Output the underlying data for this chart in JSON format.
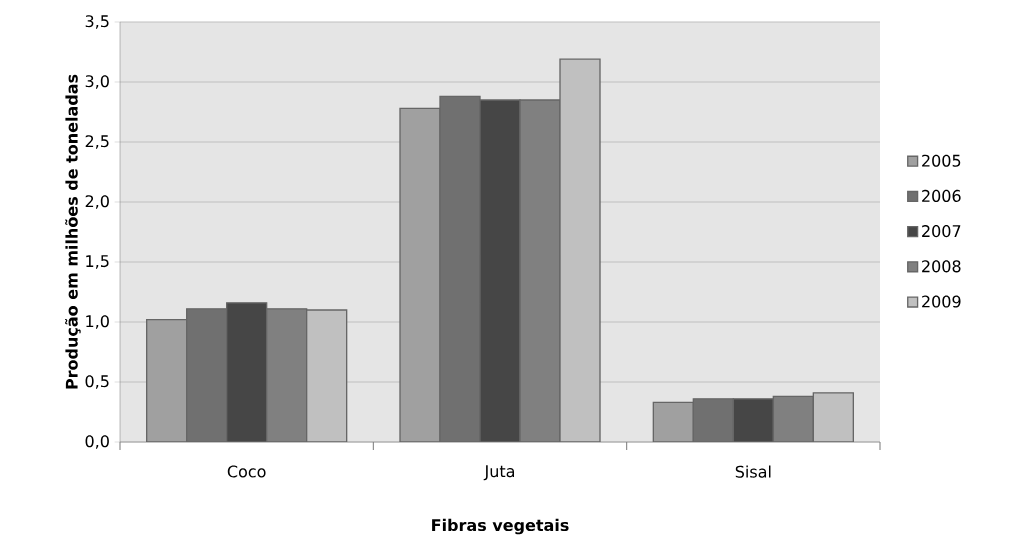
{
  "chart_data": {
    "type": "bar",
    "xlabel": "Fibras vegetais",
    "ylabel": "Produção em milhões de toneladas",
    "categories": [
      "Coco",
      "Juta",
      "Sisal"
    ],
    "series": [
      {
        "name": "2005",
        "color": "#a0a0a0",
        "values": [
          1.02,
          2.78,
          0.33
        ]
      },
      {
        "name": "2006",
        "color": "#707070",
        "values": [
          1.11,
          2.88,
          0.36
        ]
      },
      {
        "name": "2007",
        "color": "#464646",
        "values": [
          1.16,
          2.85,
          0.36
        ]
      },
      {
        "name": "2008",
        "color": "#808080",
        "values": [
          1.11,
          2.85,
          0.38
        ]
      },
      {
        "name": "2009",
        "color": "#c0c0c0",
        "values": [
          1.1,
          3.19,
          0.41
        ]
      }
    ],
    "ylim": [
      0,
      3.5
    ],
    "yticks": [
      {
        "value": 0,
        "label": "0,0"
      },
      {
        "value": 0.5,
        "label": "0,5"
      },
      {
        "value": 1,
        "label": "1,0"
      },
      {
        "value": 1.5,
        "label": "1,5"
      },
      {
        "value": 2,
        "label": "2,0"
      },
      {
        "value": 2.5,
        "label": "2,5"
      },
      {
        "value": 3,
        "label": "3,0"
      },
      {
        "value": 3.5,
        "label": "3,5"
      }
    ],
    "grid": "y",
    "legend": "right"
  }
}
